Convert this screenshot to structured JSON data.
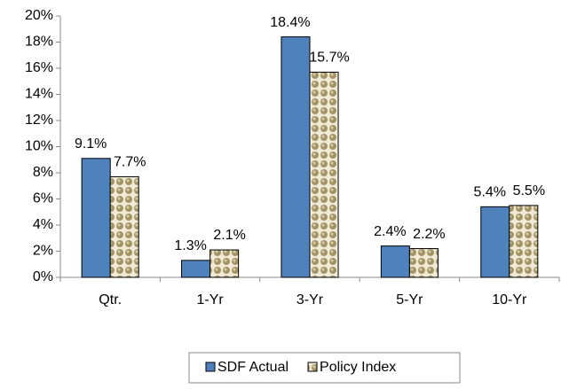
{
  "chart_data": {
    "type": "bar",
    "categories": [
      "Qtr.",
      "1-Yr",
      "3-Yr",
      "5-Yr",
      "10-Yr"
    ],
    "series": [
      {
        "name": "SDF Actual",
        "color": "#4f81bd",
        "values": [
          9.1,
          1.3,
          18.4,
          2.4,
          5.4
        ],
        "value_labels": [
          "9.1%",
          "1.3%",
          "18.4%",
          "2.4%",
          "5.4%"
        ]
      },
      {
        "name": "Policy Index",
        "color": "#a39466",
        "values": [
          7.7,
          2.1,
          15.7,
          2.2,
          5.5
        ],
        "value_labels": [
          "7.7%",
          "2.1%",
          "15.7%",
          "2.2%",
          "5.5%"
        ]
      }
    ],
    "ylim": [
      0,
      20
    ],
    "yticks": [
      {
        "value": 0,
        "label": "0%"
      },
      {
        "value": 2,
        "label": "2%"
      },
      {
        "value": 4,
        "label": "4%"
      },
      {
        "value": 6,
        "label": "6%"
      },
      {
        "value": 8,
        "label": "8%"
      },
      {
        "value": 10,
        "label": "10%"
      },
      {
        "value": 12,
        "label": "12%"
      },
      {
        "value": 14,
        "label": "14%"
      },
      {
        "value": 16,
        "label": "16%"
      },
      {
        "value": 18,
        "label": "18%"
      },
      {
        "value": 20,
        "label": "20%"
      }
    ],
    "grid": false,
    "legend": "bottom"
  }
}
